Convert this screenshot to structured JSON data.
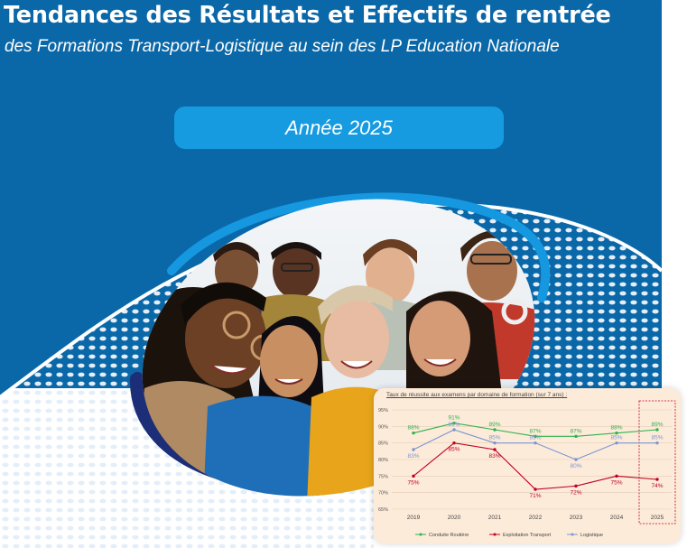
{
  "header": {
    "title": "Tendances des Résultats et Effectifs de rentrée",
    "subtitle": "des Formations Transport-Logistique au sein des LP Education Nationale",
    "year_label": "Année 2025"
  },
  "colors": {
    "brand_blue": "#0a68a8",
    "pill_blue": "#169be0",
    "dark_navy": "#1c2e78",
    "bright_blue": "#1598e0",
    "card_bg": "#fdebd9",
    "conduite": "#2db24f",
    "exploitation": "#c00020",
    "logistique": "#7b95d3"
  },
  "photo": {
    "icon": "group-of-students-photo"
  },
  "chart_data": {
    "type": "line",
    "title": "Taux de réussite aux examens par domaine de formation (sur 7 ans) :",
    "categories": [
      "2019",
      "2020",
      "2021",
      "2022",
      "2023",
      "2024",
      "2025"
    ],
    "ylim": [
      65,
      95
    ],
    "yticks": [
      "65%",
      "70%",
      "75%",
      "80%",
      "85%",
      "90%",
      "95%"
    ],
    "series": [
      {
        "name": "Conduite Routière",
        "color": "#2db24f",
        "values": [
          88,
          91,
          89,
          87,
          87,
          88,
          89
        ],
        "labels": [
          "88%",
          "91%",
          "89%",
          "87%",
          "87%",
          "88%",
          "89%"
        ],
        "label_pos": "above"
      },
      {
        "name": "Exploitation Transport",
        "color": "#c00020",
        "values": [
          75,
          85,
          83,
          71,
          72,
          75,
          74
        ],
        "labels": [
          "75%",
          "85%",
          "83%",
          "71%",
          "72%",
          "75%",
          "74%"
        ],
        "label_pos": "below"
      },
      {
        "name": "Logistique",
        "color": "#7b95d3",
        "values": [
          83,
          89,
          85,
          85,
          80,
          85,
          85
        ],
        "labels": [
          "83%",
          "89%",
          "85%",
          "85%",
          "80%",
          "85%",
          "85%"
        ],
        "label_pos": "mixed"
      }
    ],
    "highlight_category": "2025",
    "legend": "bottom",
    "grid": true
  }
}
